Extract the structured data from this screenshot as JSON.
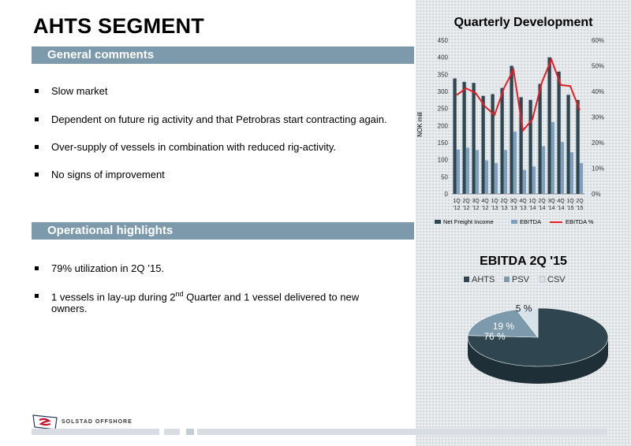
{
  "slide": {
    "title": "AHTS SEGMENT",
    "general_comments_heading": "General comments",
    "general_comments": [
      "Slow market",
      "Dependent on  future rig activity and that Petrobras start contracting again.",
      "Over-supply of vessels in combination with reduced rig-activity.",
      "No signs of improvement"
    ],
    "operational_heading": "Operational highlights",
    "operational_1": "79% utilization in 2Q ’15.",
    "operational_2_pre": "1 vessels in lay-up during 2",
    "operational_2_sup": "nd",
    "operational_2_post": " Quarter and 1 vessel delivered to new owners."
  },
  "footer": {
    "company": "SOLSTAD OFFSHORE"
  },
  "colors": {
    "net_freight_income": "#2f4650",
    "ebitda": "#7da1bd",
    "ebitda_pct": "#e41e26",
    "section_bar": "#7d9aac",
    "pie_ahts": "#2f4650",
    "pie_psv": "#7d9aac",
    "pie_csv": "#d8e2ea"
  },
  "chart_data": [
    {
      "type": "bar",
      "title": "Quarterly Development",
      "ylabel": "NOK mill",
      "ylim": [
        0,
        450
      ],
      "y_ticks": [
        "0",
        "50",
        "100",
        "150",
        "200",
        "250",
        "300",
        "350",
        "400",
        "450"
      ],
      "y2lim": [
        0,
        60
      ],
      "y2_ticks": [
        "0%",
        "10%",
        "20%",
        "30%",
        "40%",
        "50%",
        "60%"
      ],
      "categories": [
        [
          "1Q",
          "'12"
        ],
        [
          "2Q",
          "'12"
        ],
        [
          "3Q",
          "'12"
        ],
        [
          "4Q",
          "'12"
        ],
        [
          "1Q",
          "'13"
        ],
        [
          "2Q",
          "'13"
        ],
        [
          "3Q",
          "'13"
        ],
        [
          "4Q",
          "'13"
        ],
        [
          "1Q",
          "'14"
        ],
        [
          "2Q",
          "'14"
        ],
        [
          "3Q",
          "'14"
        ],
        [
          "4Q",
          "'14"
        ],
        [
          "1Q",
          "'15"
        ],
        [
          "2Q",
          "'15"
        ]
      ],
      "series": [
        {
          "name": "Net Freight Income",
          "kind": "bar",
          "values": [
            338,
            328,
            325,
            287,
            292,
            310,
            375,
            283,
            275,
            322,
            400,
            358,
            290,
            275
          ]
        },
        {
          "name": "EBITDA",
          "kind": "bar",
          "values": [
            130,
            135,
            128,
            98,
            90,
            128,
            182,
            70,
            80,
            140,
            210,
            152,
            122,
            90
          ]
        },
        {
          "name": "EBITDA %",
          "kind": "line",
          "axis": "secondary",
          "values": [
            38.6,
            41.2,
            39.4,
            34.1,
            30.8,
            41.3,
            48.5,
            24.7,
            29.1,
            43.5,
            52.5,
            42.5,
            42.1,
            32.7
          ]
        }
      ],
      "legend_position": "bottom",
      "grid": false
    },
    {
      "type": "pie",
      "title": "EBITDA 2Q '15",
      "categories": [
        "AHTS",
        "PSV",
        "CSV"
      ],
      "values": [
        76,
        19,
        5
      ],
      "labels": [
        "76 %",
        "19 %",
        "5 %"
      ],
      "legend_position": "top"
    }
  ]
}
